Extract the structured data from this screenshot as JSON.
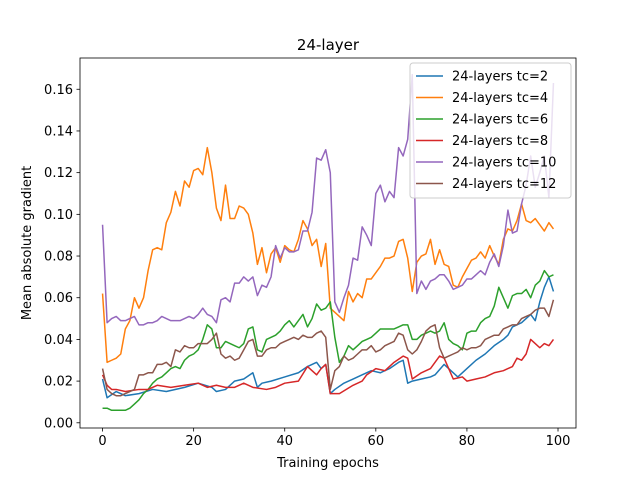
{
  "chart_data": {
    "type": "line",
    "title": "24-layer",
    "xlabel": "Training epochs",
    "ylabel": "Mean absolute gradient",
    "xlim": [
      -4.95,
      103.95
    ],
    "ylim": [
      -0.0025,
      0.175
    ],
    "x_ticks": [
      0,
      20,
      40,
      60,
      80,
      100
    ],
    "y_ticks": [
      0.0,
      0.02,
      0.04,
      0.06,
      0.08,
      0.1,
      0.12,
      0.14,
      0.16
    ],
    "x_tick_labels": [
      "0",
      "20",
      "40",
      "60",
      "80",
      "100"
    ],
    "y_tick_labels": [
      "0.00",
      "0.02",
      "0.04",
      "0.06",
      "0.08",
      "0.10",
      "0.12",
      "0.14",
      "0.16"
    ],
    "grid": false,
    "legend_position": "upper right",
    "series": [
      {
        "name": "24-layers tc=2",
        "color": "#1f77b4",
        "x": [
          0,
          1,
          3,
          5,
          8,
          11,
          14,
          18,
          21,
          24,
          25,
          27,
          29,
          31,
          33,
          34,
          35,
          37,
          40,
          43,
          45,
          47,
          48,
          49,
          50,
          51,
          53,
          55,
          57,
          59,
          61,
          63,
          65,
          66,
          67,
          68,
          70,
          72,
          73,
          75,
          78,
          80,
          82,
          84,
          86,
          88,
          89,
          90,
          92,
          94,
          95,
          96,
          97,
          98,
          99
        ],
        "y": [
          0.021,
          0.012,
          0.015,
          0.013,
          0.014,
          0.016,
          0.015,
          0.017,
          0.019,
          0.017,
          0.015,
          0.016,
          0.02,
          0.021,
          0.024,
          0.017,
          0.019,
          0.02,
          0.022,
          0.024,
          0.027,
          0.029,
          0.026,
          0.028,
          0.014,
          0.016,
          0.019,
          0.021,
          0.023,
          0.025,
          0.024,
          0.026,
          0.029,
          0.03,
          0.019,
          0.02,
          0.021,
          0.022,
          0.023,
          0.028,
          0.022,
          0.026,
          0.03,
          0.033,
          0.037,
          0.04,
          0.042,
          0.046,
          0.048,
          0.052,
          0.049,
          0.058,
          0.065,
          0.07,
          0.063
        ]
      },
      {
        "name": "24-layers tc=4",
        "color": "#ff7f0e",
        "x": [
          0,
          1,
          2,
          3,
          4,
          5,
          6,
          7,
          8,
          9,
          10,
          11,
          12,
          13,
          14,
          15,
          16,
          17,
          18,
          19,
          20,
          21,
          22,
          23,
          24,
          25,
          26,
          27,
          28,
          29,
          30,
          31,
          32,
          33,
          34,
          35,
          36,
          37,
          38,
          39,
          40,
          41,
          42,
          43,
          44,
          45,
          46,
          47,
          48,
          49,
          50,
          51,
          52,
          53,
          54,
          55,
          56,
          57,
          58,
          59,
          60,
          61,
          62,
          63,
          64,
          65,
          66,
          67,
          68,
          69,
          70,
          71,
          72,
          73,
          74,
          75,
          76,
          77,
          78,
          79,
          80,
          81,
          82,
          83,
          84,
          85,
          86,
          87,
          88,
          89,
          90,
          91,
          92,
          93,
          94,
          95,
          96,
          97,
          98,
          99
        ],
        "y": [
          0.062,
          0.029,
          0.03,
          0.031,
          0.033,
          0.045,
          0.049,
          0.06,
          0.055,
          0.06,
          0.073,
          0.083,
          0.084,
          0.083,
          0.096,
          0.101,
          0.111,
          0.104,
          0.116,
          0.113,
          0.121,
          0.122,
          0.119,
          0.132,
          0.12,
          0.103,
          0.097,
          0.114,
          0.098,
          0.098,
          0.104,
          0.103,
          0.1,
          0.091,
          0.076,
          0.084,
          0.072,
          0.081,
          0.084,
          0.077,
          0.085,
          0.083,
          0.082,
          0.088,
          0.097,
          0.093,
          0.085,
          0.088,
          0.075,
          0.086,
          0.055,
          0.053,
          0.051,
          0.049,
          0.063,
          0.058,
          0.062,
          0.06,
          0.069,
          0.069,
          0.072,
          0.075,
          0.079,
          0.079,
          0.08,
          0.087,
          0.088,
          0.079,
          0.063,
          0.077,
          0.08,
          0.081,
          0.088,
          0.076,
          0.083,
          0.076,
          0.075,
          0.066,
          0.065,
          0.07,
          0.074,
          0.078,
          0.079,
          0.082,
          0.079,
          0.085,
          0.08,
          0.076,
          0.088,
          0.093,
          0.092,
          0.097,
          0.105,
          0.097,
          0.096,
          0.098,
          0.095,
          0.092,
          0.096,
          0.093
        ]
      },
      {
        "name": "24-layers tc=6",
        "color": "#2ca02c",
        "x": [
          0,
          1,
          2,
          3,
          4,
          5,
          6,
          7,
          8,
          9,
          10,
          11,
          12,
          13,
          14,
          15,
          16,
          17,
          18,
          19,
          20,
          21,
          22,
          23,
          24,
          25,
          26,
          27,
          28,
          29,
          30,
          31,
          32,
          33,
          34,
          35,
          36,
          37,
          38,
          39,
          40,
          41,
          42,
          43,
          44,
          45,
          46,
          47,
          48,
          49,
          50,
          51,
          52,
          53,
          54,
          55,
          56,
          57,
          58,
          59,
          60,
          61,
          62,
          63,
          64,
          65,
          66,
          67,
          68,
          69,
          70,
          71,
          72,
          73,
          74,
          75,
          76,
          77,
          78,
          79,
          80,
          81,
          82,
          83,
          84,
          85,
          86,
          87,
          88,
          89,
          90,
          91,
          92,
          93,
          94,
          95,
          96,
          97,
          98,
          99
        ],
        "y": [
          0.007,
          0.007,
          0.006,
          0.006,
          0.006,
          0.006,
          0.007,
          0.009,
          0.011,
          0.014,
          0.016,
          0.019,
          0.021,
          0.022,
          0.024,
          0.026,
          0.027,
          0.026,
          0.03,
          0.032,
          0.033,
          0.035,
          0.04,
          0.047,
          0.045,
          0.036,
          0.036,
          0.039,
          0.038,
          0.037,
          0.036,
          0.038,
          0.045,
          0.046,
          0.035,
          0.034,
          0.04,
          0.041,
          0.042,
          0.044,
          0.047,
          0.049,
          0.046,
          0.049,
          0.052,
          0.046,
          0.05,
          0.057,
          0.054,
          0.055,
          0.058,
          0.041,
          0.029,
          0.032,
          0.037,
          0.035,
          0.037,
          0.039,
          0.04,
          0.041,
          0.043,
          0.045,
          0.045,
          0.045,
          0.045,
          0.046,
          0.047,
          0.047,
          0.04,
          0.04,
          0.042,
          0.043,
          0.044,
          0.043,
          0.044,
          0.048,
          0.04,
          0.038,
          0.037,
          0.035,
          0.043,
          0.044,
          0.044,
          0.048,
          0.05,
          0.051,
          0.056,
          0.065,
          0.06,
          0.055,
          0.061,
          0.062,
          0.062,
          0.064,
          0.06,
          0.066,
          0.068,
          0.073,
          0.07,
          0.071
        ]
      },
      {
        "name": "24-layers tc=8",
        "color": "#d62728",
        "x": [
          0,
          1,
          2,
          3,
          5,
          8,
          10,
          12,
          15,
          18,
          21,
          23,
          25,
          27,
          29,
          31,
          33,
          36,
          38,
          40,
          43,
          45,
          47,
          48,
          49,
          50,
          52,
          55,
          57,
          58,
          60,
          62,
          64,
          66,
          67,
          68,
          70,
          72,
          74,
          75,
          77,
          79,
          80,
          82,
          84,
          86,
          88,
          90,
          91,
          92,
          93,
          94,
          95,
          96,
          97,
          98,
          99
        ],
        "y": [
          0.023,
          0.018,
          0.016,
          0.016,
          0.015,
          0.016,
          0.016,
          0.018,
          0.017,
          0.018,
          0.019,
          0.017,
          0.018,
          0.017,
          0.017,
          0.019,
          0.017,
          0.016,
          0.017,
          0.019,
          0.02,
          0.027,
          0.023,
          0.026,
          0.028,
          0.014,
          0.014,
          0.018,
          0.02,
          0.023,
          0.026,
          0.025,
          0.029,
          0.032,
          0.031,
          0.021,
          0.024,
          0.026,
          0.032,
          0.031,
          0.021,
          0.022,
          0.02,
          0.021,
          0.022,
          0.024,
          0.025,
          0.027,
          0.031,
          0.03,
          0.033,
          0.04,
          0.038,
          0.036,
          0.038,
          0.037,
          0.04
        ]
      },
      {
        "name": "24-layers tc=10",
        "color": "#9467bd",
        "x": [
          0,
          1,
          2,
          3,
          4,
          5,
          6,
          7,
          8,
          9,
          10,
          11,
          12,
          13,
          14,
          15,
          16,
          17,
          18,
          19,
          20,
          21,
          22,
          23,
          24,
          25,
          26,
          27,
          28,
          29,
          30,
          31,
          32,
          33,
          34,
          35,
          36,
          37,
          38,
          39,
          40,
          41,
          42,
          43,
          44,
          45,
          46,
          47,
          48,
          49,
          50,
          51,
          52,
          53,
          54,
          55,
          56,
          57,
          58,
          59,
          60,
          61,
          62,
          63,
          64,
          65,
          66,
          67,
          68,
          69,
          70,
          71,
          72,
          73,
          74,
          75,
          76,
          77,
          78,
          79,
          80,
          81,
          82,
          83,
          84,
          85,
          86,
          87,
          88,
          89,
          90,
          91,
          92,
          93,
          94,
          95,
          96,
          97,
          98,
          99
        ],
        "y": [
          0.095,
          0.048,
          0.05,
          0.051,
          0.049,
          0.049,
          0.05,
          0.051,
          0.047,
          0.047,
          0.048,
          0.048,
          0.049,
          0.051,
          0.05,
          0.049,
          0.049,
          0.049,
          0.05,
          0.051,
          0.05,
          0.052,
          0.055,
          0.052,
          0.051,
          0.048,
          0.059,
          0.06,
          0.058,
          0.067,
          0.067,
          0.07,
          0.068,
          0.07,
          0.061,
          0.066,
          0.065,
          0.07,
          0.085,
          0.079,
          0.084,
          0.082,
          0.082,
          0.083,
          0.092,
          0.092,
          0.101,
          0.127,
          0.126,
          0.131,
          0.12,
          0.058,
          0.053,
          0.06,
          0.066,
          0.079,
          0.078,
          0.094,
          0.09,
          0.085,
          0.11,
          0.114,
          0.106,
          0.111,
          0.108,
          0.132,
          0.128,
          0.136,
          0.167,
          0.062,
          0.068,
          0.064,
          0.068,
          0.069,
          0.071,
          0.071,
          0.068,
          0.064,
          0.065,
          0.066,
          0.069,
          0.069,
          0.071,
          0.073,
          0.071,
          0.077,
          0.081,
          0.075,
          0.085,
          0.102,
          0.091,
          0.092,
          0.105,
          0.114,
          0.128,
          0.113,
          0.12,
          0.128,
          0.108,
          0.163
        ]
      },
      {
        "name": "24-layers tc=12",
        "color": "#8c564b",
        "x": [
          0,
          1,
          2,
          3,
          4,
          5,
          6,
          7,
          8,
          9,
          10,
          11,
          12,
          13,
          14,
          15,
          16,
          17,
          18,
          19,
          20,
          21,
          22,
          23,
          24,
          25,
          26,
          27,
          28,
          29,
          30,
          31,
          32,
          33,
          34,
          35,
          36,
          37,
          38,
          39,
          40,
          41,
          42,
          43,
          44,
          45,
          46,
          47,
          48,
          49,
          50,
          51,
          52,
          53,
          54,
          55,
          56,
          57,
          58,
          59,
          60,
          61,
          62,
          63,
          64,
          65,
          66,
          67,
          68,
          69,
          70,
          71,
          72,
          73,
          74,
          75,
          76,
          77,
          78,
          79,
          80,
          81,
          82,
          83,
          84,
          85,
          86,
          87,
          88,
          89,
          90,
          91,
          92,
          93,
          94,
          95,
          96,
          97,
          98,
          99
        ],
        "y": [
          0.026,
          0.016,
          0.014,
          0.013,
          0.013,
          0.014,
          0.015,
          0.016,
          0.023,
          0.023,
          0.024,
          0.024,
          0.028,
          0.028,
          0.029,
          0.027,
          0.035,
          0.034,
          0.037,
          0.036,
          0.036,
          0.038,
          0.038,
          0.038,
          0.04,
          0.043,
          0.033,
          0.031,
          0.032,
          0.03,
          0.031,
          0.035,
          0.039,
          0.04,
          0.032,
          0.032,
          0.035,
          0.036,
          0.036,
          0.038,
          0.039,
          0.04,
          0.041,
          0.04,
          0.042,
          0.041,
          0.041,
          0.043,
          0.044,
          0.041,
          0.016,
          0.025,
          0.027,
          0.032,
          0.03,
          0.031,
          0.033,
          0.035,
          0.035,
          0.037,
          0.034,
          0.035,
          0.037,
          0.038,
          0.039,
          0.043,
          0.042,
          0.035,
          0.033,
          0.035,
          0.039,
          0.044,
          0.046,
          0.047,
          0.036,
          0.031,
          0.032,
          0.033,
          0.034,
          0.036,
          0.035,
          0.036,
          0.036,
          0.037,
          0.04,
          0.041,
          0.042,
          0.042,
          0.045,
          0.046,
          0.047,
          0.047,
          0.05,
          0.051,
          0.052,
          0.054,
          0.055,
          0.055,
          0.051,
          0.059
        ]
      }
    ]
  }
}
